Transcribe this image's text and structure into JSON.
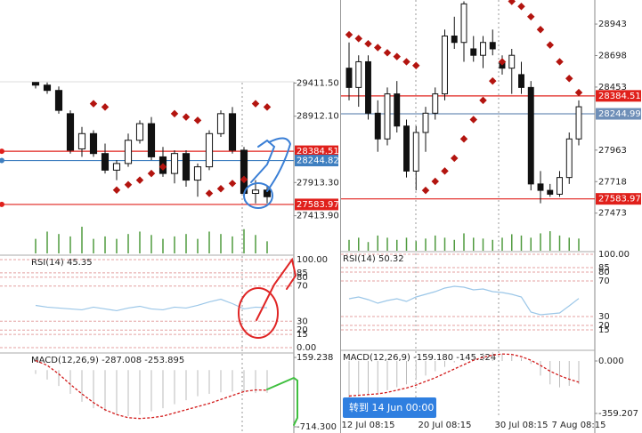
{
  "chart_data": [
    {
      "type": "candlestick",
      "ylim": [
        26820,
        29430
      ],
      "yticks": [
        {
          "value": 29411.5,
          "label": "29411.50"
        },
        {
          "value": 28912.1,
          "label": "28912.10"
        },
        {
          "value": 27913.3,
          "label": "27913.30"
        },
        {
          "value": 27413.9,
          "label": "27413.90"
        }
      ],
      "open": [
        29420,
        29380,
        29300,
        28950,
        28420,
        28650,
        28350,
        28100,
        28200,
        28550,
        28800,
        28300,
        28050,
        28350,
        27950,
        28150,
        28650,
        28950,
        28400,
        27750,
        27800
      ],
      "high": [
        29425,
        29420,
        29360,
        29000,
        28750,
        28700,
        28500,
        28250,
        28650,
        28850,
        28900,
        28450,
        28400,
        28400,
        28200,
        28700,
        29000,
        29050,
        28450,
        27950,
        27850
      ],
      "low": [
        29330,
        29250,
        28950,
        28350,
        28300,
        28300,
        28050,
        27950,
        28150,
        28500,
        28250,
        28000,
        27900,
        27850,
        27700,
        28100,
        28600,
        28350,
        27700,
        27600,
        27600
      ],
      "close": [
        29380,
        29300,
        29000,
        28400,
        28650,
        28350,
        28100,
        28200,
        28550,
        28800,
        28300,
        28050,
        28350,
        27950,
        28150,
        28650,
        28950,
        28400,
        27750,
        27800,
        27700
      ],
      "candle_color": "#111111",
      "sar": [
        null,
        null,
        null,
        null,
        null,
        29100,
        29050,
        27800,
        27880,
        27950,
        28050,
        28150,
        28950,
        28900,
        28850,
        27750,
        27820,
        27900,
        27960,
        29100,
        29050
      ],
      "sar_color": "#b3140f",
      "volume": [
        30,
        45,
        40,
        35,
        55,
        30,
        35,
        30,
        40,
        45,
        38,
        30,
        35,
        40,
        30,
        45,
        40,
        35,
        50,
        38,
        25
      ],
      "volume_color": "#4f9a3e",
      "price_lines": [
        28384.51,
        28244.82,
        27583.97
      ],
      "price_line_colors": [
        "#e0201b",
        "#3f7fc0",
        "#e0201b"
      ],
      "rsi": {
        "title": "RSI(14) 45.35",
        "color": "#9cc7e8",
        "ylim": [
          0,
          100
        ],
        "yticks": [
          {
            "value": 100,
            "label": "100.00"
          },
          85,
          80,
          70,
          30,
          20,
          15,
          {
            "value": 0,
            "label": "0.00"
          }
        ],
        "values": [
          48,
          46,
          45,
          44,
          43,
          46,
          44,
          42,
          45,
          47,
          44,
          43,
          46,
          45,
          48,
          52,
          55,
          50,
          44,
          46,
          45.35
        ]
      },
      "macd": {
        "title": "MACD(12,26,9) -287.008 -253.895",
        "signal_color": "#d21a1a",
        "histogram_color": "#bbbbbb",
        "ylim": [
          -714.3,
          159.238
        ],
        "yticks": [
          159.238,
          {
            "value": -714.3,
            "label": "-714.300"
          }
        ],
        "histogram": [
          -50,
          -120,
          -200,
          -300,
          -400,
          -480,
          -520,
          -560,
          -580,
          -560,
          -520,
          -480,
          -430,
          -380,
          -330,
          -300,
          -280,
          -270,
          -280,
          -290,
          -287.008
        ],
        "signal": [
          120,
          60,
          -50,
          -180,
          -300,
          -410,
          -500,
          -560,
          -600,
          -610,
          -600,
          -580,
          -540,
          -500,
          -460,
          -420,
          -370,
          -320,
          -270,
          -250,
          -253.895
        ]
      }
    },
    {
      "type": "candlestick",
      "ylim": [
        27160,
        29130
      ],
      "yticks": [
        28943,
        28698,
        28453,
        27963,
        27718,
        27473
      ],
      "categories": [
        null,
        null,
        "12 Jul 08:15",
        null,
        null,
        null,
        null,
        null,
        null,
        null,
        "20 Jul 08:15",
        null,
        null,
        null,
        null,
        null,
        null,
        null,
        "30 Jul 08:15",
        null,
        null,
        null,
        null,
        null,
        "7 Aug 08:15"
      ],
      "open": [
        28600,
        28450,
        28650,
        28250,
        28050,
        28400,
        28150,
        27800,
        28100,
        28250,
        28400,
        28850,
        28800,
        28750,
        28700,
        28800,
        28650,
        28600,
        28550,
        28450,
        27700,
        27650,
        27620,
        27750,
        28050
      ],
      "high": [
        28800,
        28700,
        28700,
        28350,
        28450,
        28500,
        28200,
        28150,
        28300,
        28450,
        28900,
        29000,
        29120,
        28850,
        28850,
        28900,
        28700,
        28750,
        28650,
        28500,
        27800,
        27700,
        27800,
        28100,
        28350
      ],
      "low": [
        28350,
        28300,
        28200,
        27950,
        28000,
        28100,
        27750,
        27650,
        27950,
        28200,
        28350,
        28750,
        28650,
        28650,
        28600,
        28700,
        28550,
        28400,
        28400,
        27650,
        27550,
        27600,
        27600,
        27700,
        28000
      ],
      "close": [
        28450,
        28650,
        28250,
        28050,
        28400,
        28150,
        27800,
        28100,
        28250,
        28400,
        28850,
        28800,
        29100,
        28700,
        28800,
        28750,
        28600,
        28700,
        28450,
        27700,
        27650,
        27620,
        27750,
        28050,
        28300
      ],
      "candle_color": "#111111",
      "sar": [
        28860,
        28830,
        28790,
        28760,
        28720,
        28690,
        28650,
        28620,
        27650,
        27720,
        27800,
        27900,
        28050,
        28200,
        28350,
        28500,
        28650,
        29120,
        29080,
        29000,
        28900,
        28780,
        28650,
        28520,
        28410
      ],
      "sar_color": "#b3140f",
      "volume": [
        25,
        30,
        20,
        35,
        30,
        25,
        30,
        22,
        28,
        35,
        30,
        25,
        40,
        30,
        28,
        25,
        30,
        38,
        35,
        30,
        40,
        45,
        35,
        30,
        28
      ],
      "volume_color": "#4f9a3e",
      "price_lines": [
        28384.51,
        28244.99,
        27583.97
      ],
      "price_line_colors": [
        "#e0201b",
        "#6f8fb8",
        "#e0201b"
      ],
      "rsi": {
        "title": "RSI(14) 50.32",
        "color": "#9cc7e8",
        "ylim": [
          0,
          100
        ],
        "yticks": [
          {
            "value": 100,
            "label": "100.00"
          },
          85,
          80,
          70,
          30,
          20,
          15
        ],
        "values": [
          50,
          52,
          49,
          45,
          48,
          50,
          47,
          52,
          55,
          58,
          62,
          64,
          63,
          60,
          61,
          58,
          57,
          55,
          52,
          35,
          32,
          33,
          34,
          42,
          50.32
        ]
      },
      "macd": {
        "title": "MACD(12,26,9) -159.180 -145.324",
        "signal_color": "#d21a1a",
        "histogram_color": "#bbbbbb",
        "ylim": [
          -359.207,
          0
        ],
        "yticks": [
          {
            "value": 0,
            "label": "0.000"
          },
          -359.207
        ],
        "histogram": [
          -250,
          -240,
          -230,
          -220,
          -200,
          -180,
          -160,
          -130,
          -100,
          -70,
          -40,
          -10,
          20,
          45,
          55,
          60,
          50,
          40,
          20,
          -20,
          -100,
          -160,
          -180,
          -170,
          -159.18
        ],
        "signal": [
          -240,
          -235,
          -230,
          -225,
          -215,
          -200,
          -185,
          -165,
          -140,
          -115,
          -85,
          -55,
          -25,
          5,
          25,
          40,
          48,
          45,
          30,
          5,
          -30,
          -70,
          -100,
          -125,
          -145.324
        ]
      }
    }
  ],
  "button": {
    "label": "转到 14 Jun 00:00"
  }
}
